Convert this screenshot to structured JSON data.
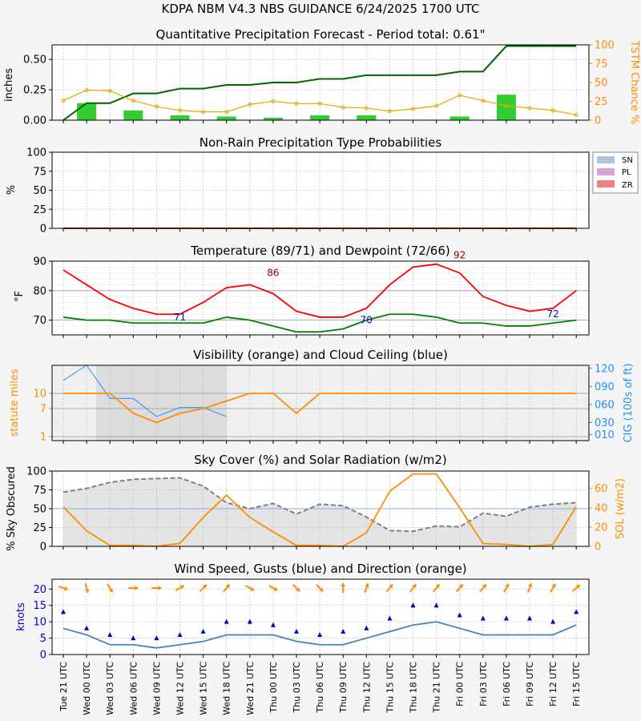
{
  "header": {
    "title": "KDPA    NBM V4.3 NBS GUIDANCE    6/24/2025  1700 UTC"
  },
  "time_labels": [
    "Tue 21 UTC",
    "Wed 00 UTC",
    "Wed 03 UTC",
    "Wed 06 UTC",
    "Wed 09 UTC",
    "Wed 12 UTC",
    "Wed 15 UTC",
    "Wed 18 UTC",
    "Wed 21 UTC",
    "Thu 00 UTC",
    "Thu 03 UTC",
    "Thu 06 UTC",
    "Thu 09 UTC",
    "Thu 12 UTC",
    "Thu 15 UTC",
    "Thu 18 UTC",
    "Thu 21 UTC",
    "Fri 00 UTC",
    "Fri 03 UTC",
    "Fri 06 UTC",
    "Fri 09 UTC",
    "Fri 12 UTC",
    "Fri 15 UTC"
  ],
  "colors": {
    "qpf_bar": "#33cc33",
    "qpf_cum": "#006400",
    "tstm": "#e6a700",
    "orange": "#ff8c00",
    "temp": "#ff0000",
    "dewp": "#008000",
    "cig": "#1e90ff",
    "wind": "#4682b4",
    "gust": "#0000cc",
    "sn": "#b0c4de",
    "pl": "#dda0dd",
    "zr": "#f08080"
  },
  "chart_data": [
    {
      "id": "qpf",
      "type": "bar+line",
      "title": "Quantitative Precipitation Forecast - Period total: 0.61\"",
      "ylabel": "inches",
      "ylabel_right": "TSTM Chance %",
      "ylim": [
        0,
        0.62
      ],
      "yticks": [
        "0.00",
        "0.25",
        "0.50"
      ],
      "yticks_vals": [
        0,
        0.25,
        0.5
      ],
      "ylim_right": [
        0,
        100
      ],
      "yticks_right": [
        "0",
        "25",
        "50",
        "75",
        "100"
      ],
      "bar_values": [
        null,
        0.14,
        null,
        0.08,
        null,
        0.04,
        null,
        0.03,
        null,
        0.02,
        null,
        0.04,
        null,
        0.04,
        null,
        null,
        null,
        0.03,
        null,
        0.21,
        null,
        null,
        null
      ],
      "cumulative": [
        0,
        0.14,
        0.14,
        0.22,
        0.22,
        0.26,
        0.26,
        0.29,
        0.29,
        0.31,
        0.31,
        0.34,
        0.34,
        0.37,
        0.37,
        0.37,
        0.37,
        0.4,
        0.4,
        0.61,
        0.61,
        0.61,
        0.61
      ],
      "tstm": [
        26,
        40,
        39,
        26,
        18,
        13,
        11,
        11,
        21,
        25,
        22,
        22,
        17,
        16,
        12,
        15,
        19,
        33,
        26,
        19,
        16,
        13,
        7
      ]
    },
    {
      "id": "ptype",
      "type": "area",
      "title": "Non-Rain Precipitation Type Probabilities",
      "ylabel": "%",
      "ylim": [
        0,
        100
      ],
      "yticks": [
        "0",
        "25",
        "50",
        "75",
        "100"
      ],
      "legend": [
        "SN",
        "PL",
        "ZR"
      ],
      "legend_position": "right",
      "series": [
        {
          "name": "SN",
          "values": [
            0,
            0,
            0,
            0,
            0,
            0,
            0,
            0,
            0,
            0,
            0,
            0,
            0,
            0,
            0,
            0,
            0,
            0,
            0,
            0,
            0,
            0,
            0
          ]
        },
        {
          "name": "PL",
          "values": [
            0,
            0,
            0,
            0,
            0,
            0,
            0,
            0,
            0,
            0,
            0,
            0,
            0,
            0,
            0,
            0,
            0,
            0,
            0,
            0,
            0,
            0,
            0
          ]
        },
        {
          "name": "ZR",
          "values": [
            0,
            0,
            0,
            0,
            0,
            0,
            0,
            0,
            0,
            0,
            0,
            0,
            0,
            0,
            0,
            0,
            0,
            0,
            0,
            0,
            0,
            0,
            0
          ]
        }
      ]
    },
    {
      "id": "temp",
      "type": "line",
      "title": "Temperature (89/71) and Dewpoint (72/66)",
      "ylabel": "°F",
      "ylim": [
        65,
        90
      ],
      "yticks": [
        "70",
        "80",
        "90"
      ],
      "yticks_vals": [
        70,
        80,
        90
      ],
      "temperature": [
        87,
        82,
        77,
        74,
        72,
        72,
        76,
        81,
        82,
        79,
        73,
        71,
        71,
        74,
        82,
        88,
        89,
        86,
        78,
        75,
        73,
        74,
        80
      ],
      "dewpoint": [
        71,
        70,
        70,
        69,
        69,
        69,
        69,
        71,
        70,
        68,
        66,
        66,
        67,
        70,
        72,
        72,
        71,
        69,
        69,
        68,
        68,
        69,
        70
      ],
      "annotations": [
        {
          "text": "86",
          "x_index": 9,
          "value": 86,
          "color": "#8b0000"
        },
        {
          "text": "71",
          "x_index": 5,
          "value": 71,
          "color": "#0000cc"
        },
        {
          "text": "70",
          "x_index": 13,
          "value": 70,
          "color": "#0000cc"
        },
        {
          "text": "92",
          "x_index": 17,
          "value": 92,
          "color": "#8b0000"
        },
        {
          "text": "72",
          "x_index": 21,
          "value": 72,
          "color": "#0000cc"
        }
      ]
    },
    {
      "id": "vis",
      "type": "line",
      "title": "Visibility (orange) and Cloud Ceiling (blue)",
      "ylabel": "statute miles",
      "ylabel_right": "CIG (100s of ft)",
      "yticks": [
        "1",
        "7",
        "10"
      ],
      "yticks_vals": [
        1,
        7,
        10
      ],
      "yticks_right": [
        "010",
        "030",
        "060",
        "090",
        "120"
      ],
      "yticks_right_vals": [
        10,
        30,
        60,
        90,
        120
      ],
      "visibility": [
        10,
        10,
        10,
        6,
        4,
        6,
        7,
        8.5,
        10,
        10,
        6,
        10,
        10,
        10,
        10,
        10,
        10,
        10,
        10,
        10,
        10,
        10,
        10
      ],
      "ceiling": [
        100,
        150,
        70,
        70,
        40,
        55,
        55,
        40,
        null,
        null,
        null,
        null,
        null,
        null,
        null,
        null,
        null,
        null,
        null,
        null,
        null,
        null,
        null
      ]
    },
    {
      "id": "sky",
      "type": "area+line",
      "title": "Sky Cover (%) and Solar Radiation (w/m2)",
      "ylabel": "% Sky Obscured",
      "ylabel_right": "SOL (w/m2)",
      "ylim": [
        0,
        100
      ],
      "yticks": [
        "0",
        "25",
        "50",
        "75",
        "100"
      ],
      "ylim_right": [
        0,
        78
      ],
      "yticks_right": [
        "0",
        "20",
        "40",
        "60"
      ],
      "yticks_right_vals": [
        0,
        20,
        40,
        60
      ],
      "sky_cover": [
        72,
        77,
        85,
        89,
        90,
        91,
        80,
        58,
        50,
        57,
        43,
        56,
        54,
        39,
        21,
        20,
        27,
        26,
        44,
        40,
        52,
        56,
        58
      ],
      "solar": [
        41,
        16,
        1,
        1,
        0,
        3,
        30,
        53,
        30,
        15,
        1,
        1,
        0,
        14,
        57,
        75,
        75,
        40,
        3,
        2,
        0,
        2,
        41
      ]
    },
    {
      "id": "wind",
      "type": "line+scatter",
      "title": "Wind Speed, Gusts (blue) and Direction (orange)",
      "ylabel": "knots",
      "ylim": [
        0,
        23
      ],
      "yticks": [
        "0",
        "5",
        "10",
        "15",
        "20"
      ],
      "yticks_vals": [
        0,
        5,
        10,
        15,
        20
      ],
      "speed": [
        8,
        6,
        3,
        3,
        2,
        3,
        4,
        6,
        6,
        6,
        4,
        3,
        3,
        5,
        7,
        9,
        10,
        8,
        6,
        6,
        6,
        6,
        9
      ],
      "gust": [
        13,
        8,
        6,
        5,
        5,
        6,
        7,
        10,
        10,
        9,
        7,
        6,
        7,
        8,
        11,
        15,
        15,
        12,
        11,
        11,
        11,
        10,
        13
      ],
      "direction_deg": [
        290,
        345,
        330,
        270,
        270,
        240,
        225,
        220,
        300,
        300,
        315,
        315,
        180,
        200,
        220,
        220,
        220,
        220,
        220,
        210,
        200,
        210,
        230
      ]
    }
  ]
}
